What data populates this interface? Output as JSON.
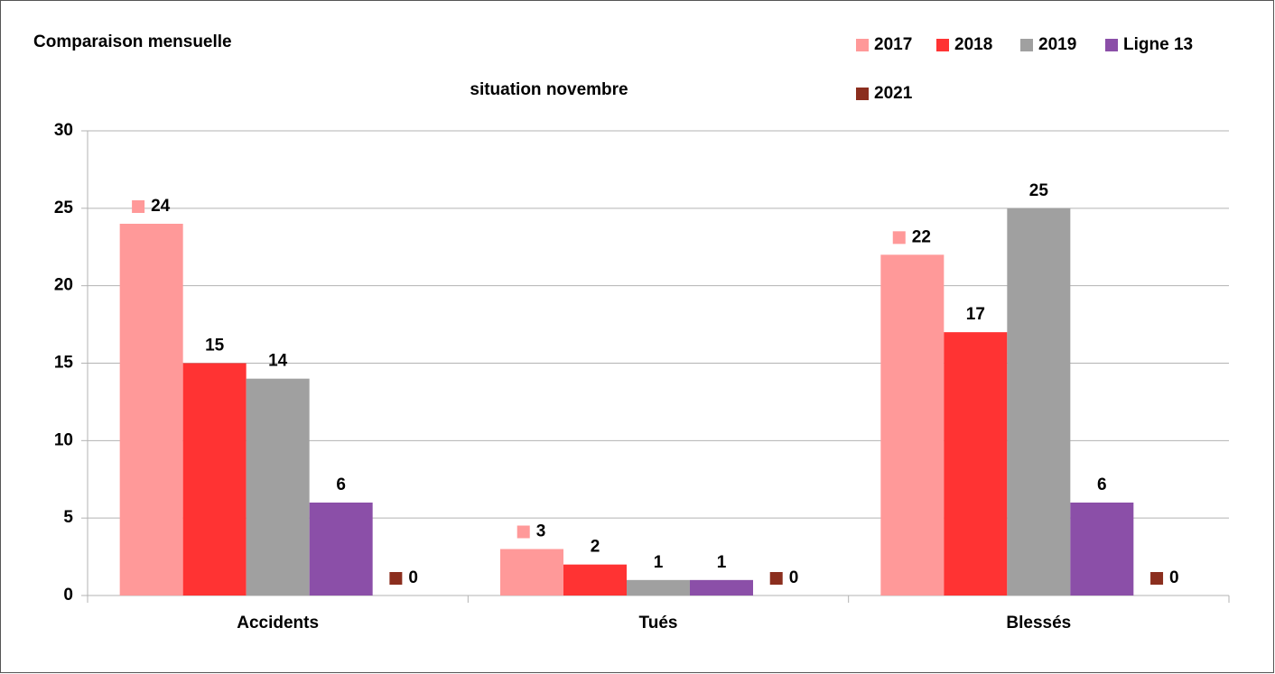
{
  "chart_data": {
    "type": "bar",
    "title": "Comparaison mensuelle",
    "subtitle": "situation novembre",
    "categories": [
      "Accidents",
      "Tués",
      "Blessés"
    ],
    "series": [
      {
        "name": "2017",
        "color": "#ff9999",
        "values": [
          24,
          3,
          22
        ],
        "show_key_in_label": true
      },
      {
        "name": "2018",
        "color": "#ff3333",
        "values": [
          15,
          2,
          17
        ],
        "show_key_in_label": false
      },
      {
        "name": "2019",
        "color": "#a0a0a0",
        "values": [
          14,
          1,
          25
        ],
        "show_key_in_label": false
      },
      {
        "name": "Ligne 13",
        "color": "#8b4fa8",
        "values": [
          6,
          1,
          6
        ],
        "show_key_in_label": false
      },
      {
        "name": "2021",
        "color": "#8b2e1e",
        "values": [
          0,
          0,
          0
        ],
        "show_key_in_label": true
      }
    ],
    "ylim": [
      0,
      30
    ],
    "yticks": [
      0,
      5,
      10,
      15,
      20,
      25,
      30
    ],
    "grid": true,
    "legend": "top-right"
  }
}
